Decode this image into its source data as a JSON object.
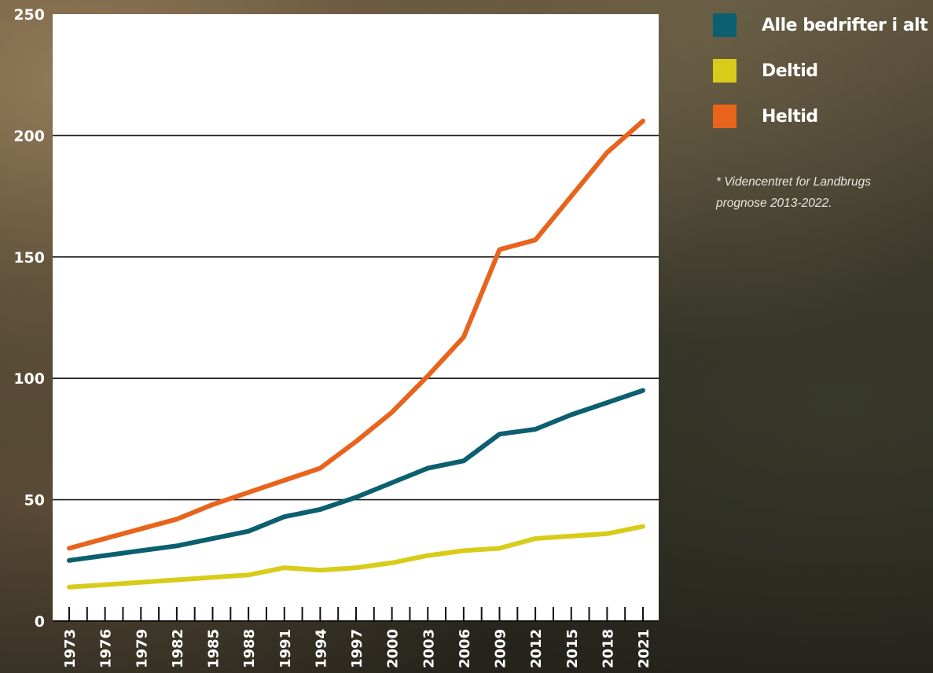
{
  "chart_data": {
    "type": "line",
    "x": [
      "1973",
      "1976",
      "1979",
      "1982",
      "1985",
      "1988",
      "1991",
      "1994",
      "1997",
      "2000",
      "2003",
      "2006",
      "2009",
      "2012",
      "2015",
      "2018",
      "2021"
    ],
    "series": [
      {
        "name": "Alle bedrifter i alt",
        "color": "#0b5f6e",
        "values": [
          25,
          27,
          29,
          31,
          34,
          37,
          43,
          46,
          51,
          57,
          63,
          66,
          77,
          79,
          85,
          90,
          95
        ]
      },
      {
        "name": "Deltid",
        "color": "#d8cc1a",
        "values": [
          14,
          15,
          16,
          17,
          18,
          19,
          22,
          21,
          22,
          24,
          27,
          29,
          30,
          34,
          35,
          36,
          39
        ]
      },
      {
        "name": "Heltid",
        "color": "#e8641c",
        "values": [
          30,
          34,
          38,
          42,
          48,
          53,
          58,
          63,
          74,
          86,
          101,
          117,
          153,
          157,
          175,
          193,
          206
        ]
      }
    ],
    "y_ticks": [
      "0",
      "50",
      "100",
      "150",
      "200",
      "250"
    ],
    "ylim": [
      0,
      250
    ],
    "grid": "horizontal",
    "legend_position": "right",
    "note": "* Videncentret for Landbrugs prognose 2013-2022."
  }
}
